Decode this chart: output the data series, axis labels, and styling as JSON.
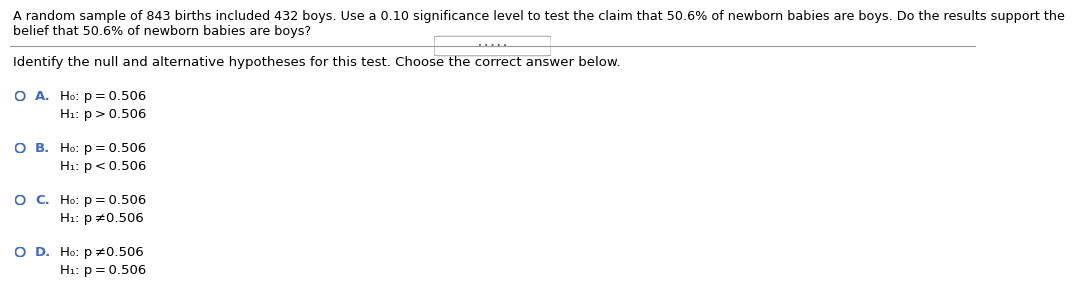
{
  "title_text": "A random sample of 843 births included 432 boys. Use a 0.10 significance level to test the claim that 50.6% of newborn babies are boys. Do the results support the",
  "title_text2": "belief that 50.6% of newborn babies are boys?",
  "instruction": "Identify the null and alternative hypotheses for this test. Choose the correct answer below.",
  "options": [
    {
      "label": "A.",
      "line1_prefix": "H₀: p = 0.506",
      "line2_prefix": "H₁: p > 0.506"
    },
    {
      "label": "B.",
      "line1_prefix": "H₀: p = 0.506",
      "line2_prefix": "H₁: p < 0.506"
    },
    {
      "label": "C.",
      "line1_prefix": "H₀: p = 0.506",
      "line2_prefix": "H₁: p ≠0.506"
    },
    {
      "label": "D.",
      "line1_prefix": "H₀: p ≠0.506",
      "line2_prefix": "H₁: p = 0.506"
    }
  ],
  "text_color": "#000000",
  "blue_color": "#4169C8",
  "bg_color": "#ffffff",
  "font_size_title": 9.2,
  "font_size_body": 9.5,
  "font_size_options": 9.5,
  "font_size_label": 9.5
}
